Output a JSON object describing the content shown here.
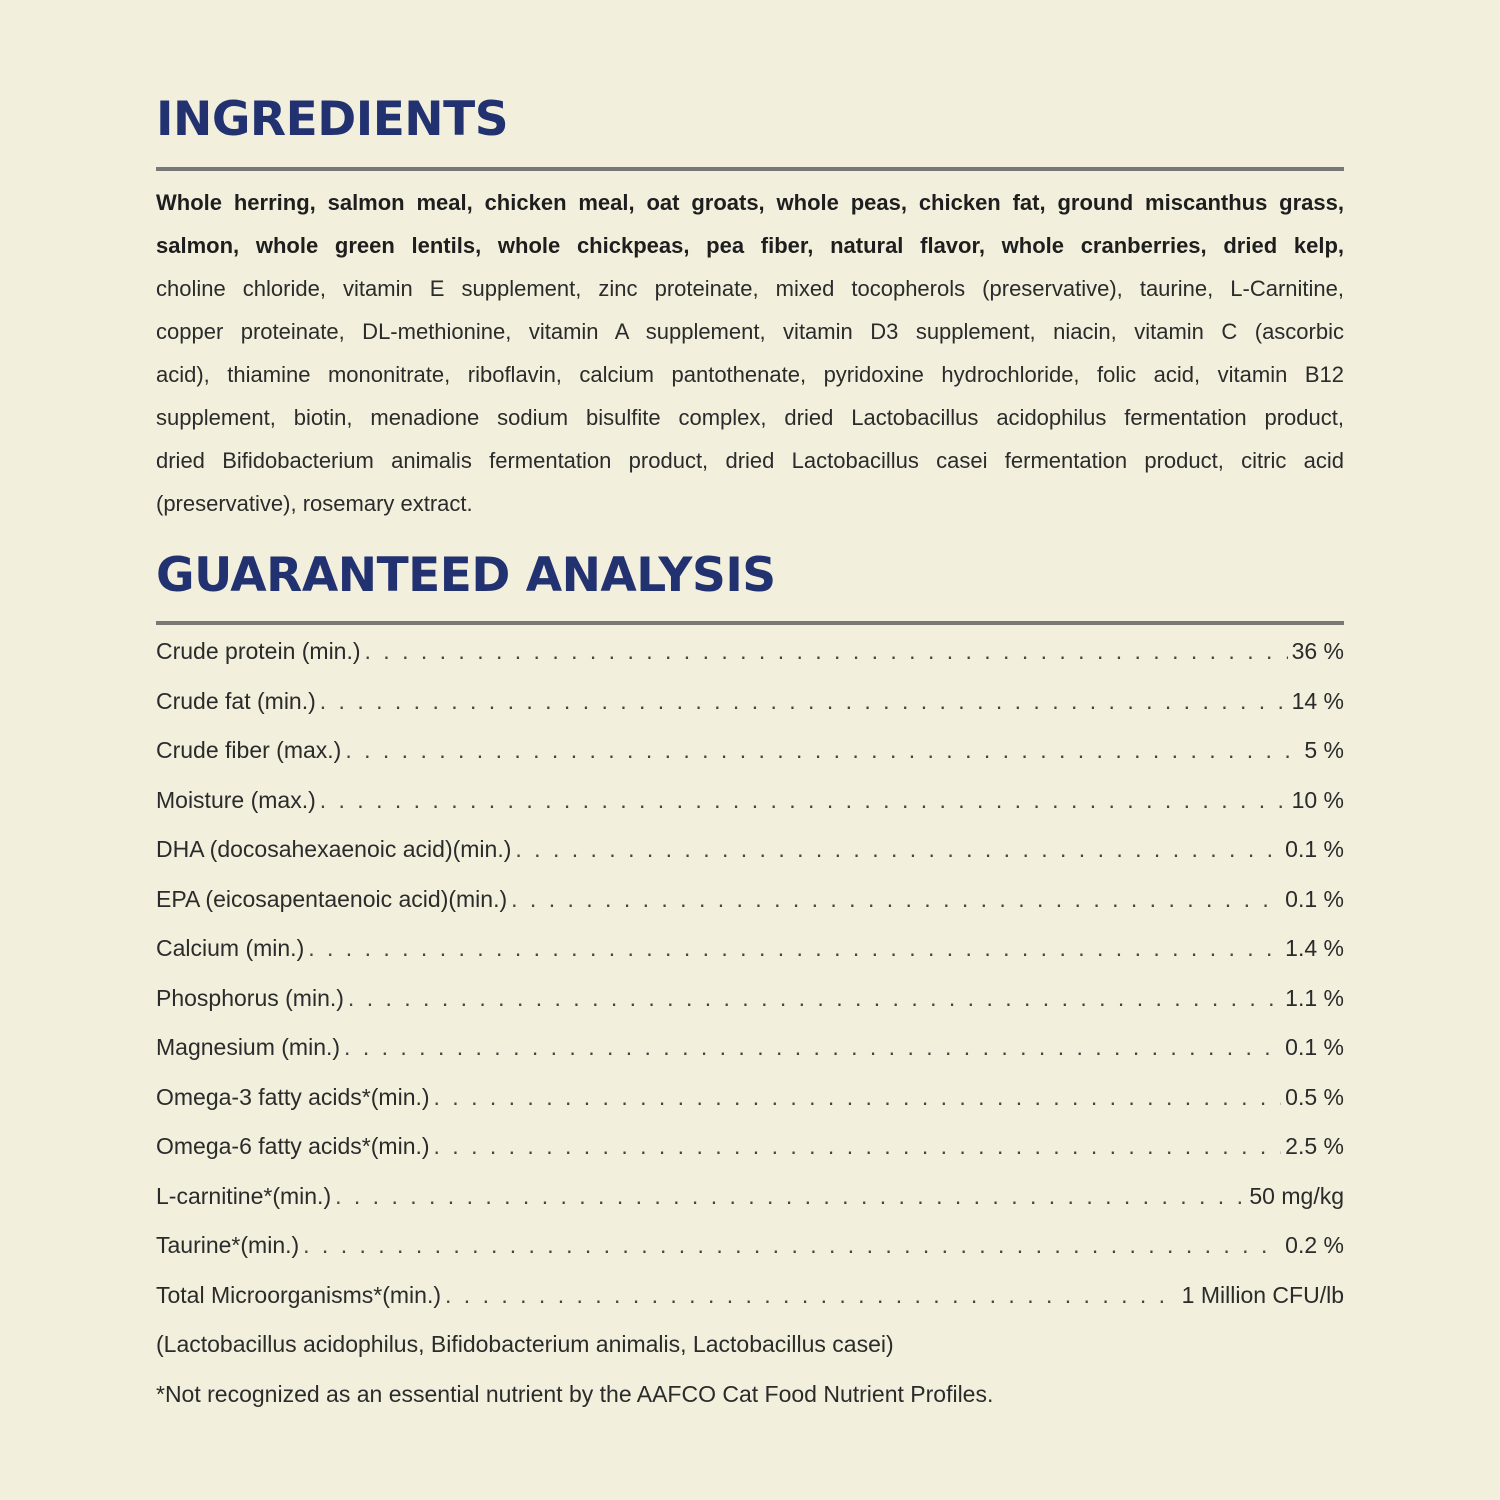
{
  "ingredients": {
    "title": "INGREDIENTS",
    "bold_lines": [
      "Whole herring, salmon meal, chicken meal, oat groats, whole peas, chicken fat, ground miscanthus grass,",
      "salmon, whole green lentils, whole chickpeas, pea fiber, natural flavor, whole cranberries, dried kelp,"
    ],
    "lines": [
      "choline chloride, vitamin E supplement, zinc proteinate, mixed tocopherols (preservative), taurine, L-Carnitine,",
      "copper proteinate, DL-methionine, vitamin A supplement, vitamin D3 supplement, niacin, vitamin C (ascorbic",
      "acid), thiamine mononitrate, riboflavin, calcium pantothenate, pyridoxine hydrochloride, folic acid, vitamin B12",
      "supplement, biotin, menadione sodium bisulfite complex, dried Lactobacillus acidophilus fermentation product,",
      "dried Bifidobacterium animalis fermentation product, dried Lactobacillus casei fermentation product, citric acid",
      "(preservative), rosemary extract."
    ]
  },
  "analysis": {
    "title": "GUARANTEED ANALYSIS",
    "rows": [
      {
        "label": "Crude protein (min.)",
        "value": "36 %"
      },
      {
        "label": "Crude fat (min.)",
        "value": "14 %"
      },
      {
        "label": "Crude fiber (max.)",
        "value": "5 %"
      },
      {
        "label": "Moisture (max.)",
        "value": "10 %"
      },
      {
        "label": "DHA (docosahexaenoic acid)(min.)",
        "value": "0.1 %"
      },
      {
        "label": "EPA (eicosapentaenoic acid)(min.)",
        "value": "0.1 %"
      },
      {
        "label": "Calcium (min.)",
        "value": "1.4 %"
      },
      {
        "label": "Phosphorus (min.)",
        "value": "1.1 %"
      },
      {
        "label": "Magnesium (min.)",
        "value": "0.1 %"
      },
      {
        "label": "Omega-3 fatty acids*(min.)",
        "value": "0.5 %"
      },
      {
        "label": "Omega-6 fatty acids*(min.)",
        "value": "2.5 %"
      },
      {
        "label": "L-carnitine*(min.)",
        "value": "50 mg/kg"
      },
      {
        "label": "Taurine*(min.)",
        "value": "0.2 %"
      },
      {
        "label": "Total Microorganisms*(min.)",
        "value": "1 Million CFU/lb"
      }
    ],
    "microorganisms_note": "(Lactobacillus acidophilus, Bifidobacterium animalis, Lactobacillus casei)",
    "footnote": "*Not recognized as an essential nutrient by the AAFCO Cat Food Nutrient Profiles."
  },
  "colors": {
    "background": "#f2efdc",
    "heading": "#223170",
    "rule": "#787878"
  }
}
